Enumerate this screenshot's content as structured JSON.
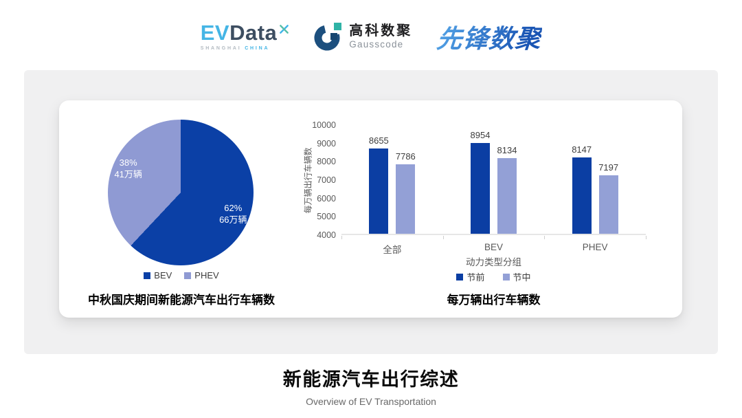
{
  "header": {
    "evdata": {
      "part1": "EV",
      "part2": "Data",
      "sub1": "SHANGHAI ",
      "sub2": "CHINA"
    },
    "gausscode": {
      "name_cn": "高科数聚",
      "name_en": "Gausscode"
    },
    "pioneer": {
      "name": "先锋数聚"
    }
  },
  "colors": {
    "series_dark": "#0b3ea3",
    "series_light": "#93a0d6",
    "pie_dark": "#0b40a6",
    "pie_light": "#8f9ad3",
    "panel_bg": "#f0f0f1",
    "evdata_blue": "#45b5e5",
    "evdata_dark": "#3d4e61",
    "pioneer_blue": "#2a6ec6",
    "gauss_navy": "#1c4f7e",
    "gauss_teal": "#2fb3a6"
  },
  "chart_data": [
    {
      "type": "pie",
      "title": "中秋国庆期间新能源汽车出行车辆数",
      "slices": [
        {
          "label": "BEV",
          "pct": 62,
          "amount": "66万辆",
          "color": "#0b40a6"
        },
        {
          "label": "PHEV",
          "pct": 38,
          "amount": "41万辆",
          "color": "#8f9ad3"
        }
      ],
      "start_angle_deg": 0,
      "direction": "clockwise",
      "legend_position": "bottom"
    },
    {
      "type": "bar",
      "title": "每万辆出行车辆数",
      "categories": [
        "全部",
        "BEV",
        "PHEV"
      ],
      "series": [
        {
          "name": "节前",
          "color": "#0b3ea3",
          "values": [
            8655,
            8954,
            8147
          ]
        },
        {
          "name": "节中",
          "color": "#93a0d6",
          "values": [
            7786,
            8134,
            7197
          ]
        }
      ],
      "xlabel": "动力类型分组",
      "ylabel": "每万辆出行车辆数",
      "ylim": [
        4000,
        10000
      ],
      "ytick_step": 1000,
      "grid": false,
      "legend_position": "bottom"
    }
  ],
  "footer": {
    "title": "新能源汽车出行综述",
    "subtitle": "Overview of EV Transportation"
  }
}
